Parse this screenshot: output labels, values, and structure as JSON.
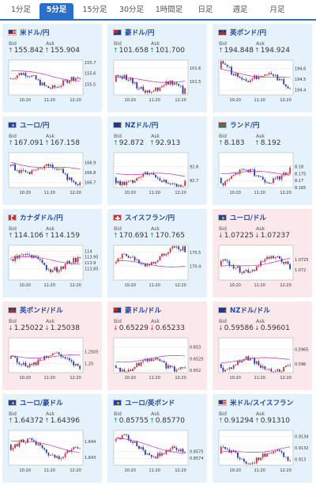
{
  "tabs": [
    {
      "label": "1分足",
      "active": false
    },
    {
      "label": "5分足",
      "active": true
    },
    {
      "label": "15分足",
      "active": false
    },
    {
      "label": "30分足",
      "active": false
    },
    {
      "label": "1時間足",
      "active": false
    },
    {
      "label": "日足",
      "active": false
    },
    {
      "label": "週足",
      "active": false
    },
    {
      "label": "月足",
      "active": false
    }
  ],
  "bid_label": "Bid",
  "ask_label": "Ask",
  "colors": {
    "accent": "#2a6fc9",
    "card_up_bg": "#e6f2fb",
    "card_down_bg": "#fbe8ea",
    "candle_up": "#d32f2f",
    "candle_down": "#1f3fae",
    "ma_line": "#c22cc2",
    "arrow_up": "#1a9e4b",
    "arrow_down": "#d83030"
  },
  "cards": [
    {
      "pair": "米ドル/円",
      "flag": "us",
      "dir": "up",
      "bid": "155.842",
      "ask": "155.904",
      "chart": {
        "ylim": [
          155.4,
          155.72
        ],
        "yticks": [
          "155.7",
          "155.6",
          "155.5"
        ],
        "xticks": [
          "10:20",
          "11:20",
          "12:20"
        ],
        "start": 155.55,
        "end": 155.5,
        "ma_start": 155.62,
        "ma_end": 155.54,
        "spike": null
      }
    },
    {
      "pair": "豪ドル/円",
      "flag": "au",
      "dir": "up",
      "bid": "101.658",
      "ask": "101.700",
      "chart": {
        "ylim": [
          101.4,
          101.66
        ],
        "yticks": [
          "101.6",
          "101.5"
        ],
        "xticks": [
          "10:20",
          "11:20",
          "12:20"
        ],
        "start": 101.5,
        "end": 101.44,
        "ma_start": 101.52,
        "ma_end": 101.5,
        "spike": -0.18
      }
    },
    {
      "pair": "英ポンド/円",
      "flag": "gb",
      "dir": "up",
      "bid": "194.848",
      "ask": "194.924",
      "chart": {
        "ylim": [
          194.35,
          194.68
        ],
        "yticks": [
          "194.6",
          "194.5",
          "194.4"
        ],
        "xticks": [
          "10:20",
          "11:20",
          "12:20"
        ],
        "start": 194.6,
        "end": 194.45,
        "ma_start": 194.58,
        "ma_end": 194.5,
        "spike": null
      }
    },
    {
      "pair": "ユーロ/円",
      "flag": "eu",
      "dir": "up",
      "bid": "167.091",
      "ask": "167.158",
      "chart": {
        "ylim": [
          166.65,
          167.0
        ],
        "yticks": [
          "166.9",
          "166.8",
          "166.7"
        ],
        "xticks": [
          "10:20",
          "11:20",
          "12:20"
        ],
        "start": 166.88,
        "end": 166.75,
        "ma_start": 166.9,
        "ma_end": 166.82,
        "spike": null
      }
    },
    {
      "pair": "NZドル/円",
      "flag": "nz",
      "dir": "up",
      "bid": "92.872",
      "ask": "92.913",
      "chart": {
        "ylim": [
          92.65,
          92.9
        ],
        "yticks": [
          "92.8",
          "92.7"
        ],
        "xticks": [
          "10:20",
          "11:20",
          "12:20"
        ],
        "start": 92.72,
        "end": 92.7,
        "ma_start": 92.76,
        "ma_end": 92.73,
        "spike": null
      }
    },
    {
      "pair": "ランド/円",
      "flag": "za",
      "dir": "up",
      "bid": "8.183",
      "ask": "8.192",
      "chart": {
        "ylim": [
          8.165,
          8.19
        ],
        "yticks": [
          "8.18",
          "8.175",
          "8.17",
          "8.165"
        ],
        "xticks": [
          "10:20",
          "11:20",
          "12:20"
        ],
        "start": 8.172,
        "end": 8.175,
        "ma_start": 8.176,
        "ma_end": 8.175,
        "spike": null
      }
    },
    {
      "pair": "カナダドル/円",
      "flag": "ca",
      "dir": "up",
      "bid": "114.106",
      "ask": "114.159",
      "chart": {
        "ylim": [
          113.75,
          114.05
        ],
        "yticks": [
          "114",
          "113.95",
          "113.9",
          "113.85"
        ],
        "xticks": [
          "10:20",
          "11:20",
          "12:20"
        ],
        "start": 113.93,
        "end": 113.87,
        "ma_start": 113.95,
        "ma_end": 113.9,
        "spike": null
      }
    },
    {
      "pair": "スイスフラン/円",
      "flag": "ch",
      "dir": "up",
      "bid": "170.691",
      "ask": "170.765",
      "chart": {
        "ylim": [
          170.3,
          170.55
        ],
        "yticks": [
          "170.5",
          "170.4"
        ],
        "xticks": [
          "10:20",
          "11:20",
          "12:20"
        ],
        "start": 170.42,
        "end": 170.5,
        "ma_start": 170.43,
        "ma_end": 170.4,
        "spike": 0.1
      }
    },
    {
      "pair": "ユーロ/ドル",
      "flag": "eu",
      "dir": "down",
      "bid": "1.07225",
      "ask": "1.07237",
      "chart": {
        "ylim": [
          1.0715,
          1.0732
        ],
        "yticks": [
          "1.0725",
          "1.072"
        ],
        "xticks": [
          "10:20",
          "11:20",
          "12:20"
        ],
        "start": 1.0722,
        "end": 1.0723,
        "ma_start": 1.0721,
        "ma_end": 1.0725,
        "spike": null
      }
    },
    {
      "pair": "英ポンド/ドル",
      "flag": "gb",
      "dir": "down",
      "bid": "1.25022",
      "ask": "1.25038",
      "chart": {
        "ylim": [
          1.2496,
          1.2511
        ],
        "yticks": [
          "1.2505",
          "1.25"
        ],
        "xticks": [
          "10:20",
          "11:20",
          "12:20"
        ],
        "start": 1.2502,
        "end": 1.2501,
        "ma_start": 1.2503,
        "ma_end": 1.2503,
        "spike": null
      }
    },
    {
      "pair": "豪ドル/ドル",
      "flag": "au",
      "dir": "down",
      "bid": "0.65229",
      "ask": "0.65233",
      "chart": {
        "ylim": [
          0.6519,
          0.6534
        ],
        "yticks": [
          "0.653",
          "0.6525",
          "0.652"
        ],
        "xticks": [
          "10:20",
          "11:20",
          "12:20"
        ],
        "start": 0.6522,
        "end": 0.6523,
        "ma_start": 0.6524,
        "ma_end": 0.6526,
        "spike": null
      }
    },
    {
      "pair": "NZドル/ドル",
      "flag": "nz",
      "dir": "down",
      "bid": "0.59586",
      "ask": "0.59601",
      "chart": {
        "ylim": [
          0.5957,
          0.5969
        ],
        "yticks": [
          "0.5965",
          "0.596"
        ],
        "xticks": [
          "10:20",
          "11:20",
          "12:20"
        ],
        "start": 0.596,
        "end": 0.5959,
        "ma_start": 0.5961,
        "ma_end": 0.5962,
        "spike": null
      }
    },
    {
      "pair": "ユーロ/豪ドル",
      "flag": "eu",
      "dir": "up",
      "bid": "1.64372",
      "ask": "1.64396",
      "chart": {
        "ylim": [
          1.6425,
          1.6447
        ],
        "yticks": [
          "1.644",
          "1.643"
        ],
        "xticks": [
          "10:20",
          "11:20",
          "12:20"
        ],
        "start": 1.6438,
        "end": 1.6432,
        "ma_start": 1.6441,
        "ma_end": 1.6434,
        "spike": null
      }
    },
    {
      "pair": "ユーロ/英ポンド",
      "flag": "eu",
      "dir": "up",
      "bid": "0.85755",
      "ask": "0.85770",
      "chart": {
        "ylim": [
          0.8573,
          0.8578
        ],
        "yticks": [
          "0.8575",
          "0.8574"
        ],
        "xticks": [
          "10:20",
          "11:20",
          "12:20"
        ],
        "start": 0.85765,
        "end": 0.85742,
        "ma_start": 0.85768,
        "ma_end": 0.85748,
        "spike": null
      }
    },
    {
      "pair": "米ドル/スイスフラン",
      "flag": "us",
      "dir": "up",
      "bid": "0.91294",
      "ask": "0.91310",
      "chart": {
        "ylim": [
          0.9129,
          0.9135
        ],
        "yticks": [
          "0.9134",
          "0.9132",
          "0.913"
        ],
        "xticks": [
          "10:20",
          "11:20",
          "12:20"
        ],
        "start": 0.9131,
        "end": 0.913,
        "ma_start": 0.9131,
        "ma_end": 0.9132,
        "spike": null
      }
    }
  ]
}
